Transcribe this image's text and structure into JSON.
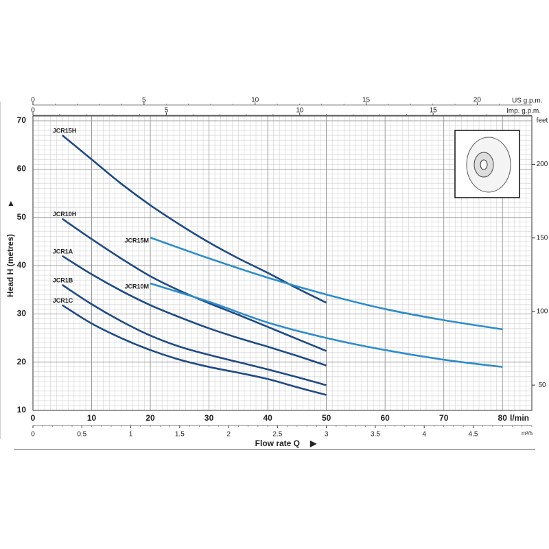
{
  "chart_data": {
    "type": "line",
    "y_label": "Head H (metres)",
    "x_label": "Flow rate Q",
    "x_unit": "l/min",
    "xlim": [
      0,
      85
    ],
    "xticks": [
      0,
      10,
      20,
      30,
      40,
      50,
      60,
      70,
      80
    ],
    "ylim": [
      10,
      71
    ],
    "yticks": [
      10,
      20,
      30,
      40,
      50,
      60,
      70
    ],
    "grid": true,
    "y2_unit": "feet",
    "y2lim": [
      32.8,
      232.9
    ],
    "y2ticks": [
      50,
      100,
      150,
      200
    ],
    "top_axes": [
      {
        "unit": "US g.p.m.",
        "xlim": [
          0,
          22.46
        ],
        "xticks": [
          0,
          5,
          10,
          15,
          20
        ]
      },
      {
        "unit": "Imp. g.p.m.",
        "xlim": [
          0,
          18.7
        ],
        "xticks": [
          0,
          5,
          10,
          15
        ]
      }
    ],
    "bottom_axis": {
      "unit": "m³/h",
      "xlim": [
        0,
        5.1
      ],
      "xticks": [
        0,
        0.5,
        1,
        1.5,
        2,
        2.5,
        3,
        3.5,
        4,
        4.5
      ]
    },
    "series": [
      {
        "name": "JCR15H",
        "color": "#1d4a85",
        "x": [
          5,
          10,
          15,
          20,
          25,
          30,
          35,
          40,
          45,
          50
        ],
        "values": [
          67,
          62,
          57,
          52.5,
          48.5,
          44.8,
          41.5,
          38.5,
          35.3,
          32.3
        ]
      },
      {
        "name": "JCR10H",
        "color": "#1d4a85",
        "x": [
          5,
          10,
          15,
          20,
          25,
          30,
          35,
          40,
          45,
          50
        ],
        "values": [
          49.7,
          45.5,
          41.5,
          37.8,
          34.8,
          32.2,
          29.8,
          27.3,
          24.8,
          22.3
        ]
      },
      {
        "name": "JCR1A",
        "color": "#1d4a85",
        "x": [
          5,
          10,
          15,
          20,
          25,
          30,
          35,
          40,
          45,
          50
        ],
        "values": [
          42,
          38.2,
          34.8,
          31.8,
          29.3,
          27,
          25,
          23.2,
          21.3,
          19.3
        ]
      },
      {
        "name": "JCR1B",
        "color": "#1d4a85",
        "x": [
          5,
          10,
          15,
          20,
          25,
          30,
          35,
          40,
          45,
          50
        ],
        "values": [
          36,
          32,
          28.5,
          25.5,
          23.2,
          21.5,
          20,
          18.5,
          16.9,
          15.2
        ]
      },
      {
        "name": "JCR1C",
        "color": "#1d4a85",
        "x": [
          5,
          10,
          15,
          20,
          25,
          30,
          35,
          40,
          45,
          50
        ],
        "values": [
          31.8,
          28,
          25,
          22.5,
          20.5,
          19,
          17.8,
          16.5,
          14.8,
          13.2
        ]
      },
      {
        "name": "JCR15M",
        "color": "#2b8ccc",
        "x": [
          20,
          30,
          40,
          50,
          60,
          70,
          80
        ],
        "values": [
          45.8,
          41.5,
          37.5,
          34,
          31,
          28.7,
          26.8
        ]
      },
      {
        "name": "JCR10M",
        "color": "#2b8ccc",
        "x": [
          20,
          30,
          40,
          50,
          60,
          70,
          80
        ],
        "values": [
          36.3,
          32.5,
          28.2,
          25,
          22.5,
          20.5,
          19
        ]
      }
    ]
  }
}
